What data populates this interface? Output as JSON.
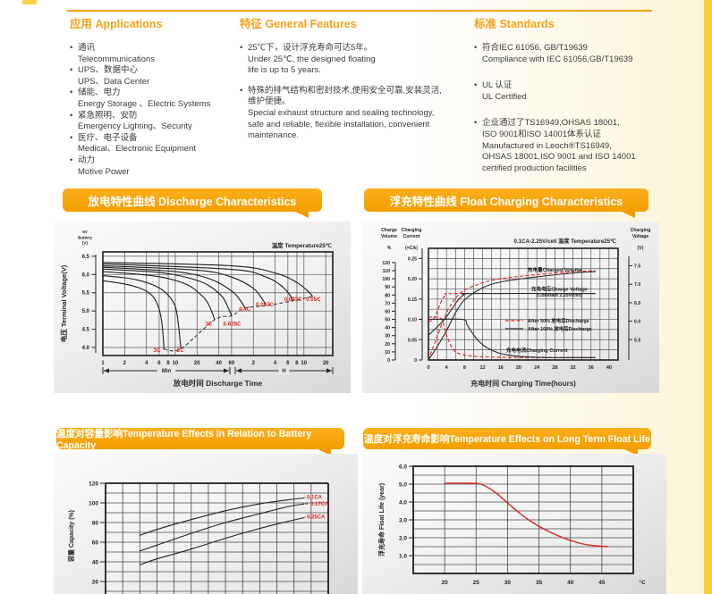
{
  "sections": {
    "applications": {
      "title": "应用 Applications",
      "items": [
        {
          "cn": "通讯",
          "en": "Telecommunications"
        },
        {
          "cn": "UPS、数据中心",
          "en": "UPS、Data Center"
        },
        {
          "cn": "储能、电力",
          "en": "Energy Storage 、Electric Systems"
        },
        {
          "cn": "紧急照明、安防",
          "en": "Emergency Lighting、Security"
        },
        {
          "cn": "医疗、电子设备",
          "en": "Medical、Electronic Equipment"
        },
        {
          "cn": "动力",
          "en": "Motive Power"
        }
      ]
    },
    "features": {
      "title": "特征 General Features",
      "items": [
        {
          "lines": [
            "25℃下，设计浮充寿命可达5年。",
            "Under 25℃, the designed floating",
            "life is up to 5 years."
          ]
        },
        {
          "lines": [
            "特殊的排气结构和密封技术,使用安全可靠,安装灵活,",
            "维护便捷。",
            "Special exhaust structure and sealing technology,",
            "safe and reliable, flexible installation, convenient",
            "maintenance."
          ]
        }
      ]
    },
    "standards": {
      "title": "标准 Standards",
      "items": [
        {
          "lines": [
            "符合IEC 61056, GB/T19639",
            "Compliance with IEC 61056,GB/T19639"
          ]
        },
        {
          "lines": [
            "UL 认证",
            "UL Certified"
          ]
        },
        {
          "lines": [
            "企业通过了TS16949,OHSAS 18001,",
            "ISO 9001和ISO 14001体系认证",
            "Manufactured in Leoch®TS16949,",
            "OHSAS 18001,ISO 9001 and ISO 14001",
            "certified production facilities"
          ]
        }
      ]
    }
  },
  "colors": {
    "accent_orange": "#F6A118",
    "header_bar": "#F39E00",
    "curve_red": "#E2231A",
    "stripe_yellow": "#FECB32"
  },
  "chart_data": [
    {
      "id": "discharge",
      "type": "line",
      "title": "放电特性曲线 Discharge Characteristics",
      "xlabel": "放电时间 Discharge Time",
      "ylabel": "电压 Terminal Voltage(V)",
      "y_axis_top_note": [
        "6V",
        "Battery",
        "(V)"
      ],
      "annotation": "温度 Temperature25℃",
      "y_ticks": [
        6.5,
        6.0,
        5.5,
        5.0,
        4.5,
        4.0
      ],
      "ylim": [
        3.78,
        6.62
      ],
      "x_ticks_minutes": [
        1,
        2,
        4,
        6,
        8,
        10,
        20,
        40,
        60
      ],
      "x_ticks_hours": [
        2,
        4,
        6,
        8,
        10,
        20
      ],
      "x_range_labels": [
        "Min",
        "H"
      ],
      "series": [
        {
          "name": "3C",
          "label_xy": [
            5.0,
            3.88
          ],
          "points": [
            [
              1,
              5.83
            ],
            [
              2,
              5.74
            ],
            [
              3,
              5.65
            ],
            [
              4,
              5.54
            ],
            [
              5,
              5.38
            ],
            [
              6,
              5.05
            ],
            [
              6.6,
              4.6
            ],
            [
              7,
              3.95
            ]
          ]
        },
        {
          "name": "2C",
          "label_xy": [
            10.5,
            3.88
          ],
          "points": [
            [
              1,
              5.97
            ],
            [
              2,
              5.91
            ],
            [
              3,
              5.85
            ],
            [
              5,
              5.71
            ],
            [
              7,
              5.54
            ],
            [
              9,
              5.3
            ],
            [
              10.5,
              4.95
            ],
            [
              12,
              3.97
            ]
          ]
        },
        {
          "name": "1C",
          "label_xy": [
            26,
            4.6
          ],
          "points": [
            [
              1,
              6.08
            ],
            [
              3,
              6.01
            ],
            [
              6,
              5.94
            ],
            [
              10,
              5.84
            ],
            [
              15,
              5.71
            ],
            [
              20,
              5.54
            ],
            [
              27,
              5.28
            ],
            [
              32,
              4.98
            ],
            [
              35,
              4.76
            ]
          ]
        },
        {
          "name": "0.628C",
          "label_xy": [
            46,
            4.6
          ],
          "points": [
            [
              1,
              6.15
            ],
            [
              5,
              6.07
            ],
            [
              10,
              5.99
            ],
            [
              20,
              5.84
            ],
            [
              30,
              5.68
            ],
            [
              45,
              5.38
            ],
            [
              55,
              5.05
            ],
            [
              60,
              4.87
            ]
          ]
        },
        {
          "name": "0.4C",
          "label_xy": [
            76,
            5.0
          ],
          "points": [
            [
              1,
              6.2
            ],
            [
              10,
              6.08
            ],
            [
              30,
              5.88
            ],
            [
              60,
              5.55
            ],
            [
              80,
              5.28
            ],
            [
              92,
              5.08
            ]
          ]
        },
        {
          "name": "0.207C",
          "label_xy": [
            130,
            5.13
          ],
          "points": [
            [
              1,
              6.24
            ],
            [
              20,
              6.12
            ],
            [
              60,
              5.93
            ],
            [
              120,
              5.62
            ],
            [
              160,
              5.32
            ],
            [
              182,
              5.15
            ]
          ]
        },
        {
          "name": "0.093C",
          "label_xy": [
            320,
            5.27
          ],
          "points": [
            [
              1,
              6.29
            ],
            [
              60,
              6.14
            ],
            [
              180,
              5.93
            ],
            [
              300,
              5.67
            ],
            [
              390,
              5.42
            ],
            [
              425,
              5.28
            ]
          ]
        },
        {
          "name": "0.05C",
          "label_xy": [
            640,
            5.27
          ],
          "points": [
            [
              1,
              6.33
            ],
            [
              60,
              6.24
            ],
            [
              240,
              6.04
            ],
            [
              480,
              5.78
            ],
            [
              700,
              5.52
            ],
            [
              790,
              5.4
            ]
          ]
        }
      ],
      "cutoff_locus": [
        [
          7,
          3.95
        ],
        [
          12,
          3.97
        ],
        [
          35,
          4.76
        ],
        [
          60,
          4.87
        ],
        [
          92,
          5.08
        ],
        [
          182,
          5.15
        ],
        [
          425,
          5.28
        ],
        [
          790,
          5.4
        ]
      ]
    },
    {
      "id": "float_charging",
      "type": "line",
      "title": "浮充特性曲线 Float Charging Characteristics",
      "xlabel": "充电时间 Charging Time(hours)",
      "annotation": "0.1CA-2.25V/cell  温度 Temperature25℃",
      "axes": {
        "volume": {
          "header": [
            "Charge",
            "Volume",
            "%"
          ],
          "ticks": [
            0,
            10,
            20,
            30,
            40,
            50,
            60,
            70,
            80,
            90,
            100,
            110,
            120
          ]
        },
        "current": {
          "header": [
            "Charging",
            "Current",
            "(×CA)"
          ],
          "ticks": [
            0,
            0.05,
            0.1,
            0.15,
            0.2,
            0.25
          ]
        },
        "voltage": {
          "header": [
            "Charging",
            "Voltage",
            "(V)"
          ],
          "ticks": [
            5.5,
            6.0,
            6.5,
            7.0,
            7.5
          ]
        }
      },
      "x_ticks": [
        0,
        4,
        8,
        12,
        16,
        20,
        24,
        28,
        32,
        36,
        40
      ],
      "xlim": [
        0,
        42
      ],
      "series": [
        {
          "name": "volume_after50",
          "axis": "volume",
          "style": "dashed",
          "points": [
            [
              0,
              0
            ],
            [
              2,
              30
            ],
            [
              4,
              58
            ],
            [
              6,
              76
            ],
            [
              8,
              86
            ],
            [
              12,
              95
            ],
            [
              16,
              100
            ],
            [
              22,
              104
            ],
            [
              30,
              108
            ],
            [
              37,
              110
            ]
          ]
        },
        {
          "name": "volume_after100",
          "axis": "volume",
          "style": "solid",
          "points": [
            [
              0,
              0
            ],
            [
              2,
              17
            ],
            [
              4,
              36
            ],
            [
              6,
              58
            ],
            [
              8,
              74
            ],
            [
              12,
              89
            ],
            [
              16,
              96
            ],
            [
              22,
              101
            ],
            [
              30,
              106
            ],
            [
              37,
              109
            ]
          ]
        },
        {
          "name": "voltage_after50",
          "axis": "voltage",
          "style": "dashed",
          "points": [
            [
              0,
              5.98
            ],
            [
              1,
              6.05
            ],
            [
              2,
              6.28
            ],
            [
              3,
              6.58
            ],
            [
              4,
              6.72
            ],
            [
              5,
              6.75
            ],
            [
              20,
              6.75
            ],
            [
              37,
              6.75
            ]
          ]
        },
        {
          "name": "voltage_after100",
          "axis": "voltage",
          "style": "solid",
          "points": [
            [
              0,
              5.62
            ],
            [
              2,
              5.85
            ],
            [
              4,
              6.12
            ],
            [
              6,
              6.48
            ],
            [
              7,
              6.63
            ],
            [
              8,
              6.72
            ],
            [
              10,
              6.75
            ],
            [
              37,
              6.75
            ]
          ]
        },
        {
          "name": "current_after50",
          "axis": "current",
          "style": "dashed",
          "points": [
            [
              0,
              0.105
            ],
            [
              2,
              0.105
            ],
            [
              3,
              0.098
            ],
            [
              4,
              0.062
            ],
            [
              5,
              0.035
            ],
            [
              6,
              0.02
            ],
            [
              8,
              0.012
            ],
            [
              12,
              0.008
            ],
            [
              20,
              0.006
            ],
            [
              37,
              0.006
            ]
          ]
        },
        {
          "name": "current_after100",
          "axis": "current",
          "style": "solid",
          "points": [
            [
              0,
              0.1
            ],
            [
              7.5,
              0.1
            ],
            [
              8.5,
              0.088
            ],
            [
              9.5,
              0.07
            ],
            [
              11,
              0.048
            ],
            [
              13,
              0.03
            ],
            [
              16,
              0.016
            ],
            [
              20,
              0.009
            ],
            [
              26,
              0.006
            ],
            [
              37,
              0.006
            ]
          ]
        }
      ],
      "labels": {
        "charged_volume": "充电量Charged Volume",
        "charge_voltage": [
          "充电电压Charge Voltage",
          "(Constant 2.25V/cell)"
        ],
        "after50": "After 50% 放电后Discharge",
        "after100": "After 100% 放电后Discharge",
        "charging_current": "充电电流Charging Current"
      }
    },
    {
      "id": "temp_capacity",
      "type": "line",
      "title": "温度对容量影响Temperature Effects in Relation to Battery Capacity",
      "ylabel": "容量 Capacity (%)",
      "y_ticks": [
        120,
        100,
        80,
        60,
        40,
        20
      ],
      "xlim": [
        -25,
        40
      ],
      "x_grid_step": 5,
      "series": [
        {
          "name": "0.1CA",
          "label_y": 106,
          "points": [
            [
              -15,
              67
            ],
            [
              -10,
              73
            ],
            [
              0,
              83
            ],
            [
              10,
              92
            ],
            [
              20,
              99
            ],
            [
              28,
              103
            ],
            [
              33,
              105
            ]
          ]
        },
        {
          "name": "0.17CA",
          "label_y": 99,
          "points": [
            [
              -15,
              51
            ],
            [
              -10,
              57
            ],
            [
              0,
              69
            ],
            [
              10,
              80
            ],
            [
              20,
              89
            ],
            [
              28,
              96
            ],
            [
              33,
              99
            ]
          ]
        },
        {
          "name": "0.25CA",
          "label_y": 86,
          "points": [
            [
              -15,
              37
            ],
            [
              -10,
              43
            ],
            [
              0,
              53
            ],
            [
              10,
              64
            ],
            [
              20,
              74
            ],
            [
              28,
              81
            ],
            [
              33,
              85
            ]
          ]
        }
      ]
    },
    {
      "id": "temp_float_life",
      "type": "line",
      "title": "温度对浮充寿命影响Temperature Effects on Long Term Float Life",
      "ylabel": "浮充寿命 Float Life (year)",
      "y_ticks": [
        6.0,
        5.0,
        4.0,
        3.0,
        2.0,
        1.0
      ],
      "ylim": [
        0,
        6
      ],
      "x_ticks": [
        20,
        25,
        30,
        35,
        40,
        45
      ],
      "x_unit": "°C",
      "xlim": [
        15,
        50
      ],
      "series": [
        {
          "name": "float-life",
          "points": [
            [
              20,
              5.05
            ],
            [
              24,
              5.05
            ],
            [
              26,
              4.97
            ],
            [
              28,
              4.55
            ],
            [
              30,
              3.95
            ],
            [
              32,
              3.35
            ],
            [
              34,
              2.85
            ],
            [
              36,
              2.45
            ],
            [
              38,
              2.12
            ],
            [
              40,
              1.85
            ],
            [
              42,
              1.65
            ],
            [
              44,
              1.55
            ],
            [
              46,
              1.5
            ]
          ]
        }
      ]
    }
  ]
}
